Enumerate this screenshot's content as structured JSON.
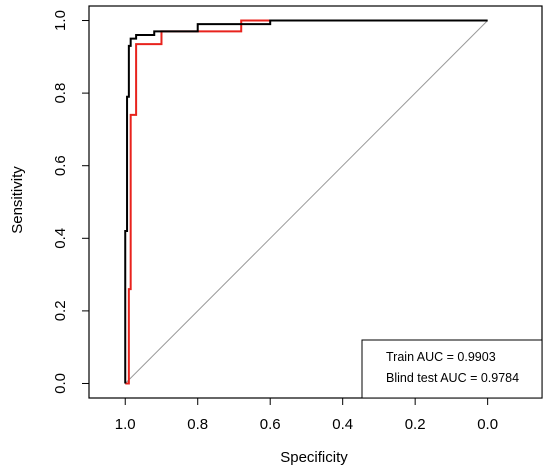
{
  "chart_data": {
    "type": "line",
    "xlabel": "Specificity",
    "ylabel": "Sensitivity",
    "xlim": [
      1.1,
      -0.15
    ],
    "ylim": [
      -0.04,
      1.04
    ],
    "x_reversed": true,
    "x_ticks": [
      1.0,
      0.8,
      0.6,
      0.4,
      0.2,
      0.0
    ],
    "x_tick_labels": [
      "1.0",
      "0.8",
      "0.6",
      "0.4",
      "0.2",
      "0.0"
    ],
    "y_ticks": [
      0.0,
      0.2,
      0.4,
      0.6,
      0.8,
      1.0
    ],
    "y_tick_labels": [
      "0.0",
      "0.2",
      "0.4",
      "0.6",
      "0.8",
      "1.0"
    ],
    "grid": false,
    "legend_position": "bottom-right",
    "reference_line": {
      "from": [
        1.0,
        0.0
      ],
      "to": [
        0.0,
        1.0
      ],
      "color": "#999999"
    },
    "series": [
      {
        "name": "Train AUC = 0.9903",
        "color": "#000000",
        "points": [
          [
            1.0,
            0.0
          ],
          [
            1.0,
            0.42
          ],
          [
            0.995,
            0.42
          ],
          [
            0.995,
            0.79
          ],
          [
            0.99,
            0.79
          ],
          [
            0.99,
            0.93
          ],
          [
            0.985,
            0.93
          ],
          [
            0.985,
            0.95
          ],
          [
            0.97,
            0.95
          ],
          [
            0.97,
            0.96
          ],
          [
            0.92,
            0.96
          ],
          [
            0.92,
            0.97
          ],
          [
            0.8,
            0.97
          ],
          [
            0.8,
            0.99
          ],
          [
            0.6,
            0.99
          ],
          [
            0.6,
            1.0
          ],
          [
            0.0,
            1.0
          ]
        ]
      },
      {
        "name": "Blind test  AUC = 0.9784",
        "color": "#e8231d",
        "points": [
          [
            1.0,
            0.0
          ],
          [
            0.99,
            0.0
          ],
          [
            0.99,
            0.26
          ],
          [
            0.985,
            0.26
          ],
          [
            0.985,
            0.74
          ],
          [
            0.97,
            0.74
          ],
          [
            0.97,
            0.935
          ],
          [
            0.9,
            0.935
          ],
          [
            0.9,
            0.97
          ],
          [
            0.68,
            0.97
          ],
          [
            0.68,
            1.0
          ],
          [
            0.6,
            1.0
          ]
        ]
      }
    ]
  }
}
